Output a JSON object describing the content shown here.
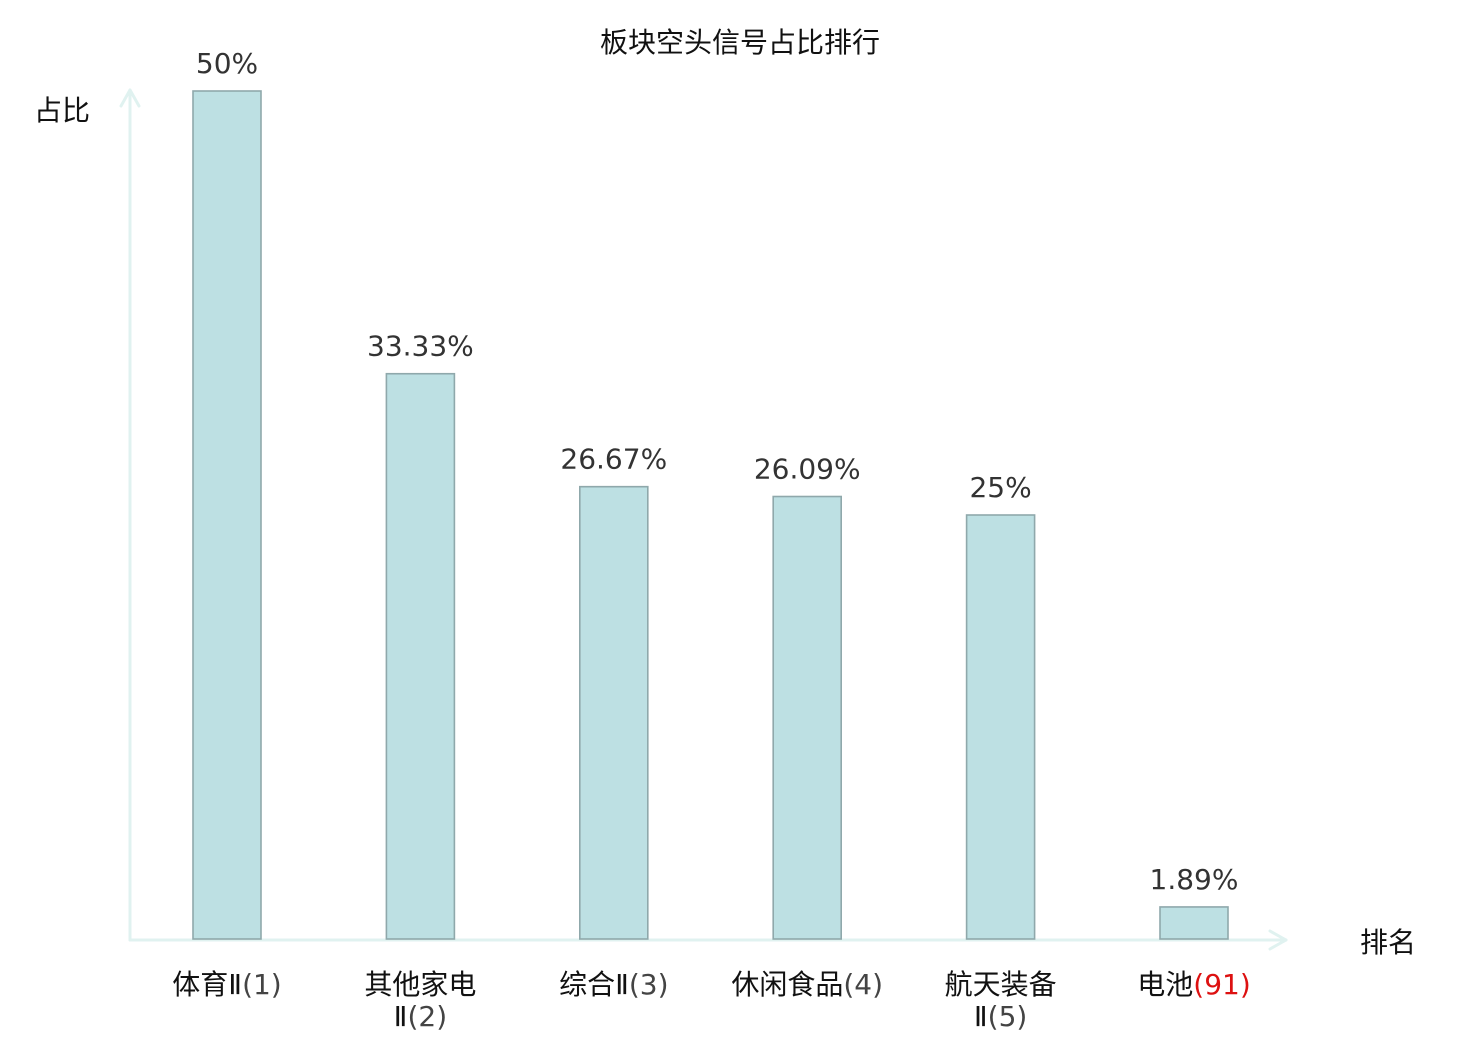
{
  "chart_data": {
    "type": "bar",
    "title": "板块空头信号占比排行",
    "xlabel": "排名",
    "ylabel": "占比",
    "ylim": [
      0,
      50
    ],
    "grid": false,
    "legend": "none",
    "categories": [
      {
        "name": "体育Ⅱ",
        "rank": "(1)",
        "highlight": false
      },
      {
        "name": "其他家电",
        "name2": "Ⅱ",
        "rank": "(2)",
        "highlight": false
      },
      {
        "name": "综合Ⅱ",
        "rank": "(3)",
        "highlight": false
      },
      {
        "name": "休闲食品",
        "rank": "(4)",
        "highlight": false
      },
      {
        "name": "航天装备",
        "name2": "Ⅱ",
        "rank": "(5)",
        "highlight": false
      },
      {
        "name": "电池",
        "rank": "(91)",
        "highlight": true
      }
    ],
    "values": [
      50,
      33.33,
      26.67,
      26.09,
      25,
      1.89
    ],
    "value_labels": [
      "50%",
      "33.33%",
      "26.67%",
      "26.09%",
      "25%",
      "1.89%"
    ],
    "colors": {
      "bar_fill": "#bde0e3",
      "bar_stroke": "#8fa8ab",
      "axis": "#e0f2f0",
      "highlight": "#dd1111"
    }
  }
}
